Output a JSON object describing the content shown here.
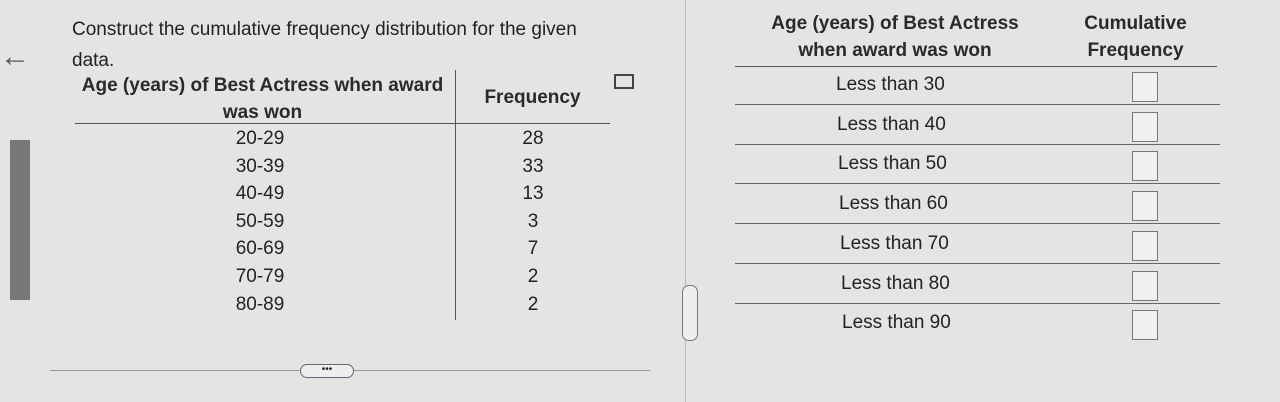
{
  "question": "Construct the cumulative frequency distribution for the given data.",
  "given_table": {
    "headers": [
      "Age (years) of Best Actress when award was won",
      "Frequency"
    ],
    "rows": [
      [
        "20-29",
        28
      ],
      [
        "30-39",
        33
      ],
      [
        "40-49",
        13
      ],
      [
        "50-59",
        3
      ],
      [
        "60-69",
        7
      ],
      [
        "70-79",
        2
      ],
      [
        "80-89",
        2
      ]
    ]
  },
  "answer_table": {
    "headers": [
      "Age (years) of Best Actress when award was won",
      "Cumulative Frequency"
    ],
    "rows": [
      "Less than 30",
      "Less than 40",
      "Less than 50",
      "Less than 60",
      "Less than 70",
      "Less than 80",
      "Less than 90"
    ]
  }
}
